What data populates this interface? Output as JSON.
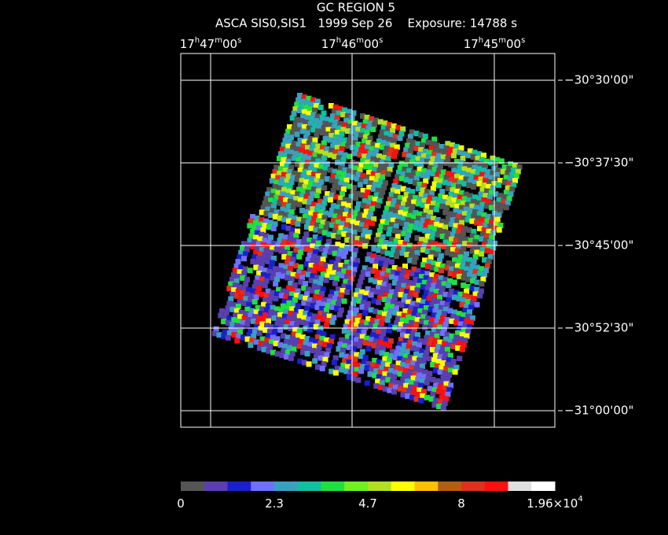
{
  "header": {
    "title": "GC REGION 5",
    "subtitle": "ASCA SIS0,SIS1   1999 Sep 26    Exposure: 14788 s"
  },
  "ra_labels": [
    [
      "17",
      "h",
      "47",
      "m",
      "00",
      "s"
    ],
    [
      "17",
      "h",
      "46",
      "m",
      "00",
      "s"
    ],
    [
      "17",
      "h",
      "45",
      "m",
      "00",
      "s"
    ]
  ],
  "dec_labels": [
    "−30°30'00\"",
    "−30°37'30\"",
    "−30°45'00\"",
    "−30°52'30\"",
    "−31°00'00\""
  ],
  "colorbar": {
    "colors": [
      "#555555",
      "#5a3fb0",
      "#1a1fd0",
      "#7070ff",
      "#3aa0c0",
      "#10c0a0",
      "#20e040",
      "#70f020",
      "#b0e020",
      "#ffff00",
      "#ffc000",
      "#b06010",
      "#e03020",
      "#ff1010",
      "#e0e0e0",
      "#ffffff"
    ],
    "labels": [
      [
        "0"
      ],
      [
        "2.3"
      ],
      [
        "4.7"
      ],
      [
        "8"
      ],
      [
        "1.96×10",
        "4"
      ]
    ]
  }
}
